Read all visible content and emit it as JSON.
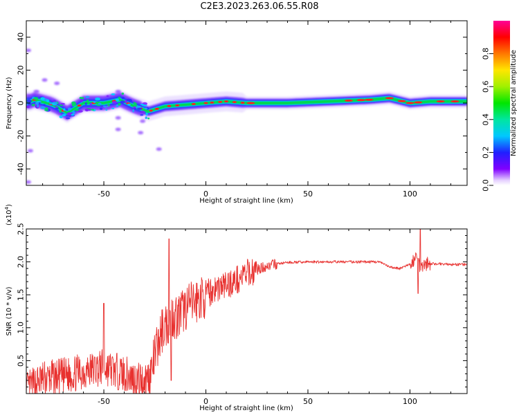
{
  "title": "C2E3.2023.263.06.55.R08",
  "colors": {
    "snr_line": "#e8312f",
    "frame": "#000000"
  },
  "chart_data": [
    {
      "type": "heatmap",
      "title": "",
      "xlabel": "Height of straight line (km)",
      "ylabel": "Frequency (Hz)",
      "xlim": [
        -88,
        128
      ],
      "ylim": [
        -50,
        50
      ],
      "x_ticks": [
        -50,
        0,
        50,
        100
      ],
      "y_ticks": [
        -40,
        -20,
        0,
        20,
        40
      ],
      "colorbar": {
        "label": "Normalized spectral amplitude",
        "range": [
          0,
          1
        ],
        "ticks": [
          0.0,
          0.2,
          0.4,
          0.6,
          0.8
        ],
        "colormap": "rainbow (violet-blue-cyan-green-yellow-red-magenta)"
      },
      "ridge": [
        {
          "x": -84,
          "f": 2
        },
        {
          "x": -75,
          "f": -1
        },
        {
          "x": -68,
          "f": -6
        },
        {
          "x": -60,
          "f": 0
        },
        {
          "x": -50,
          "f": 0
        },
        {
          "x": -42,
          "f": 2
        },
        {
          "x": -35,
          "f": -2
        },
        {
          "x": -28,
          "f": -5
        },
        {
          "x": -20,
          "f": -2
        },
        {
          "x": -10,
          "f": -1
        },
        {
          "x": 0,
          "f": 0
        },
        {
          "x": 10,
          "f": 1
        },
        {
          "x": 20,
          "f": 0
        },
        {
          "x": 40,
          "f": 0
        },
        {
          "x": 60,
          "f": 1
        },
        {
          "x": 80,
          "f": 2
        },
        {
          "x": 90,
          "f": 3
        },
        {
          "x": 100,
          "f": 0
        },
        {
          "x": 110,
          "f": 1
        },
        {
          "x": 128,
          "f": 1
        }
      ],
      "isolated_blobs": [
        {
          "x": -79,
          "f": 14
        },
        {
          "x": -73,
          "f": 12
        },
        {
          "x": -83,
          "f": 7
        },
        {
          "x": -43,
          "f": 7
        },
        {
          "x": -43,
          "f": -9
        },
        {
          "x": -48,
          "f": -3
        },
        {
          "x": -43,
          "f": -16
        },
        {
          "x": -32,
          "f": -18
        },
        {
          "x": -31,
          "f": -11
        },
        {
          "x": -87,
          "f": 32
        },
        {
          "x": -86,
          "f": -29
        },
        {
          "x": -87,
          "f": -48
        },
        {
          "x": -23,
          "f": -28
        }
      ]
    },
    {
      "type": "line",
      "title": "",
      "xlabel": "Height of straight line (km)",
      "ylabel": "SNR (10 * v/v)",
      "y_multiplier": "(x10",
      "y_multiplier_exp": "4",
      "y_multiplier_close": ")",
      "xlim": [
        -88,
        128
      ],
      "ylim": [
        0,
        2.5
      ],
      "x_ticks": [
        -50,
        0,
        50,
        100
      ],
      "y_ticks": [
        0.5,
        1.0,
        1.5,
        2.0,
        2.5
      ],
      "series": [
        {
          "x": [
            -88,
            -80,
            -72,
            -65,
            -58,
            -50,
            -45,
            -40,
            -35,
            -30,
            -27,
            -24,
            -21,
            -18,
            -16,
            -14,
            -10,
            -5,
            0,
            5,
            10,
            15,
            20,
            25,
            30,
            35,
            40,
            50,
            60,
            70,
            80,
            85,
            90,
            95,
            100,
            103,
            105,
            107,
            110,
            115,
            120,
            128
          ],
          "y": [
            0.05,
            0.22,
            0.25,
            0.3,
            0.35,
            0.4,
            0.35,
            0.3,
            0.22,
            0.2,
            0.3,
            0.7,
            1.0,
            1.1,
            1.2,
            1.15,
            1.3,
            1.4,
            1.5,
            1.6,
            1.65,
            1.72,
            1.82,
            1.88,
            1.94,
            1.97,
            1.99,
            2.0,
            2.0,
            2.0,
            2.0,
            2.0,
            1.92,
            1.9,
            1.96,
            2.08,
            1.95,
            1.98,
            1.97,
            1.97,
            1.96,
            1.96
          ]
        }
      ],
      "notable_peaks": [
        {
          "x": -50,
          "y": 1.37
        },
        {
          "x": -18,
          "y": 2.35
        },
        {
          "x": -17,
          "y": 0.2
        },
        {
          "x": 105,
          "y": 2.5
        },
        {
          "x": 104,
          "y": 1.52
        }
      ]
    }
  ]
}
